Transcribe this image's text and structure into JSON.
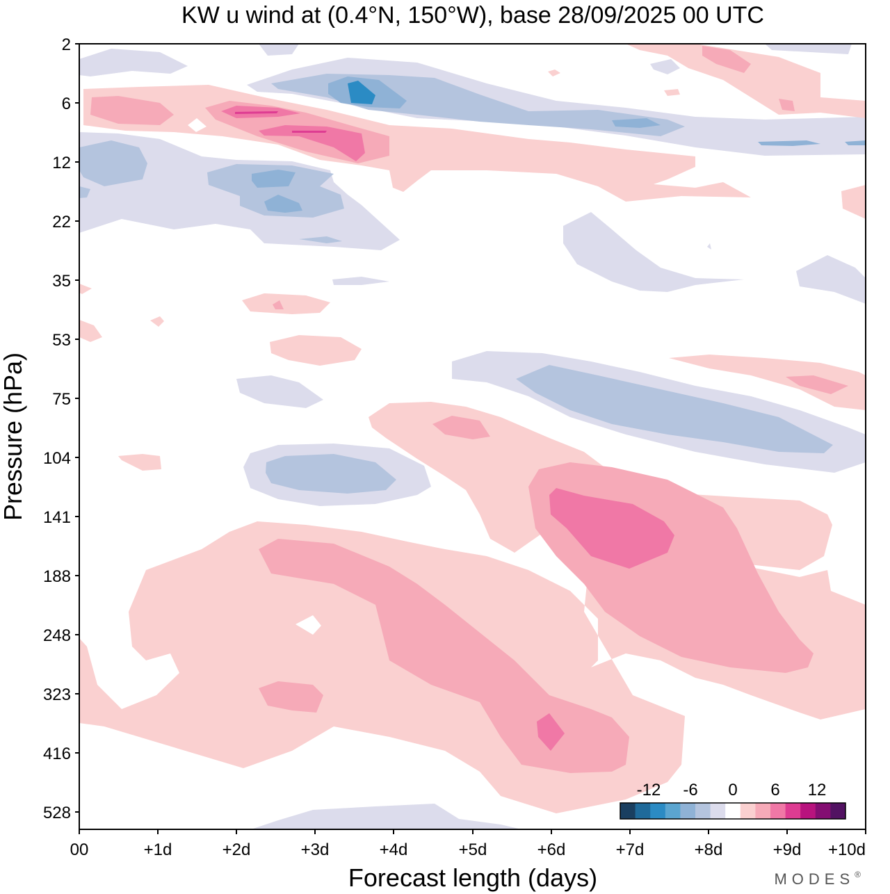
{
  "chart_data": {
    "type": "heatmap",
    "title": "KW u wind at (0.4°N, 150°W),  base 28/09/2025  00 UTC",
    "xlabel": "Forecast length (days)",
    "ylabel": "Pressure (hPa)",
    "x_tick_labels": [
      "00",
      "+1d",
      "+2d",
      "+3d",
      "+4d",
      "+5d",
      "+6d",
      "+7d",
      "+8d",
      "+9d",
      "+10d"
    ],
    "x_range_days": [
      0,
      10
    ],
    "y_tick_labels": [
      "2",
      "6",
      "12",
      "22",
      "35",
      "53",
      "75",
      "104",
      "141",
      "188",
      "248",
      "323",
      "416",
      "528"
    ],
    "colorbar": {
      "tick_labels": [
        "-12",
        "-6",
        "0",
        "6",
        "12"
      ],
      "levels": [
        -18,
        -15,
        -12,
        -9,
        -6,
        -3,
        -1.5,
        1.5,
        3,
        6,
        9,
        12,
        15,
        18
      ],
      "colors": [
        "#1a3f60",
        "#1f6a9a",
        "#2b8bc4",
        "#5ba5d0",
        "#8fb2d6",
        "#b4c4de",
        "#dcdcec",
        "#ffffff",
        "#fad0d0",
        "#f6aab8",
        "#f078a6",
        "#de3c92",
        "#b8137e",
        "#840e72",
        "#521262"
      ]
    },
    "features": [
      {
        "name": "upper-negative-core",
        "sign": "negative",
        "peak_ms": -12,
        "days": [
          3.2,
          4.0
        ],
        "pressure_hPa": [
          4,
          8
        ]
      },
      {
        "name": "upper-positive-band",
        "sign": "positive",
        "peak_ms": 12,
        "days": [
          1.5,
          4.0
        ],
        "pressure_hPa": [
          6,
          12
        ]
      },
      {
        "name": "negative-band-12-22hPa",
        "sign": "negative",
        "peak_ms": -9,
        "days": [
          0.0,
          4.0
        ],
        "pressure_hPa": [
          10,
          30
        ]
      },
      {
        "name": "negative-band-60-110hPa",
        "sign": "negative",
        "peak_ms": -6,
        "days": [
          4.7,
          10.0
        ],
        "pressure_hPa": [
          60,
          110
        ]
      },
      {
        "name": "negative-blob-104hPa",
        "sign": "negative",
        "peak_ms": -6,
        "days": [
          2.1,
          4.5
        ],
        "pressure_hPa": [
          95,
          130
        ]
      },
      {
        "name": "positive-max-141hPa",
        "sign": "positive",
        "peak_ms": 12,
        "days": [
          5.9,
          7.5
        ],
        "pressure_hPa": [
          120,
          170
        ]
      },
      {
        "name": "positive-tilted-band-150-450hPa",
        "sign": "positive",
        "peak_ms": 9,
        "days": [
          0.0,
          10.0
        ],
        "pressure_hPa": [
          140,
          480
        ]
      },
      {
        "name": "positive-max-380hPa",
        "sign": "positive",
        "peak_ms": 12,
        "days": [
          5.8,
          6.2
        ],
        "pressure_hPa": [
          350,
          420
        ]
      }
    ]
  },
  "branding": {
    "text": "MODES",
    "mark": "®"
  }
}
